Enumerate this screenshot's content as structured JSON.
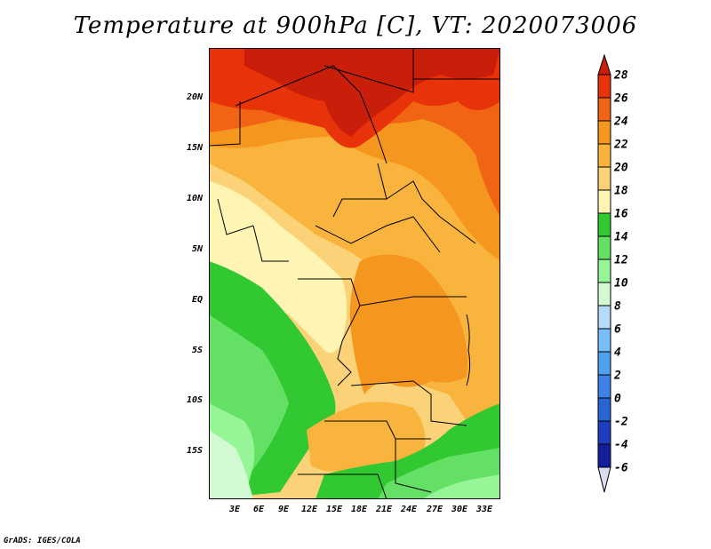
{
  "title": "Temperature at 900hPa [C], VT: 2020073006",
  "map": {
    "lat_labels": [
      "20N",
      "15N",
      "10N",
      "5N",
      "EQ",
      "5S",
      "10S",
      "15S"
    ],
    "lon_labels": [
      "3E",
      "6E",
      "9E",
      "12E",
      "15E",
      "18E",
      "21E",
      "24E",
      "27E",
      "30E",
      "33E"
    ]
  },
  "colorbar": {
    "labels": [
      "28",
      "26",
      "24",
      "22",
      "20",
      "18",
      "16",
      "14",
      "12",
      "10",
      "8",
      "6",
      "4",
      "2",
      "0",
      "-2",
      "-4",
      "-6"
    ],
    "colors": {
      "above_28": "#c81e0a",
      "26_28": "#e8320a",
      "24_26": "#f06414",
      "22_24": "#f5961e",
      "20_22": "#f8b43c",
      "18_20": "#fcd278",
      "16_18": "#fef5b4",
      "14_16": "#32c832",
      "12_14": "#64e164",
      "10_12": "#96f596",
      "8_10": "#d2fad2",
      "6_8": "#b4dcfa",
      "4_6": "#78befa",
      "2_4": "#50a0f0",
      "0_2": "#3c82e6",
      "m2_0": "#2864d2",
      "m4_m2": "#1e3cbe",
      "m6_m4": "#141e9b",
      "below_m6": "#dcdcf0"
    }
  },
  "credit": "GrADS: IGES/COLA"
}
